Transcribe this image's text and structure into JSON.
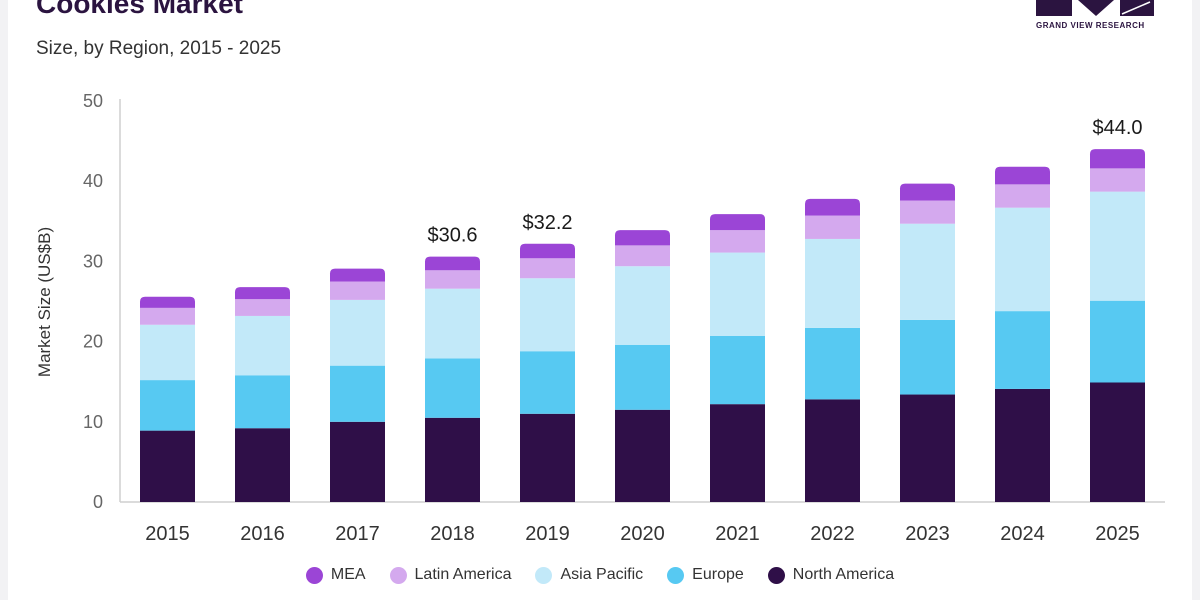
{
  "header": {
    "title": "Cookies Market",
    "subtitle": "Size, by Region, 2015 - 2025",
    "logo_text": "GRAND VIEW RESEARCH"
  },
  "colors": {
    "MEA": "#9b45d6",
    "Latin America": "#d4a9ee",
    "Asia Pacific": "#c2e9f9",
    "Europe": "#57c9f2",
    "North America": "#2f0f48",
    "axis_text": "#666666",
    "grid": "#cfcfcf",
    "logo": "#2b1440"
  },
  "chart_data": {
    "type": "bar",
    "stacked": true,
    "title": "Cookies Market",
    "subtitle": "Size, by Region, 2015 - 2025",
    "xlabel": "",
    "ylabel": "Market Size (US$B)",
    "ylim": [
      0,
      50
    ],
    "yticks": [
      0,
      10,
      20,
      30,
      40,
      50
    ],
    "categories": [
      "2015",
      "2016",
      "2017",
      "2018",
      "2019",
      "2020",
      "2021",
      "2022",
      "2023",
      "2024",
      "2025"
    ],
    "series": [
      {
        "name": "North America",
        "values": [
          8.9,
          9.2,
          10.0,
          10.5,
          11.0,
          11.5,
          12.2,
          12.8,
          13.4,
          14.1,
          14.9
        ]
      },
      {
        "name": "Europe",
        "values": [
          6.3,
          6.6,
          7.0,
          7.4,
          7.8,
          8.1,
          8.5,
          8.9,
          9.3,
          9.7,
          10.2
        ]
      },
      {
        "name": "Asia Pacific",
        "values": [
          6.9,
          7.4,
          8.2,
          8.7,
          9.1,
          9.8,
          10.4,
          11.1,
          12.0,
          12.9,
          13.6
        ]
      },
      {
        "name": "Latin America",
        "values": [
          2.1,
          2.1,
          2.3,
          2.3,
          2.5,
          2.6,
          2.8,
          2.9,
          2.9,
          2.9,
          2.9
        ]
      },
      {
        "name": "MEA",
        "values": [
          1.4,
          1.5,
          1.6,
          1.7,
          1.8,
          1.9,
          2.0,
          2.1,
          2.1,
          2.2,
          2.4
        ]
      }
    ],
    "annotations": [
      {
        "category": "2018",
        "label": "$30.6"
      },
      {
        "category": "2019",
        "label": "$32.2"
      },
      {
        "category": "2025",
        "label": "$44.0"
      }
    ],
    "legend": {
      "position": "bottom",
      "order": [
        "MEA",
        "Latin America",
        "Asia Pacific",
        "Europe",
        "North America"
      ]
    }
  }
}
